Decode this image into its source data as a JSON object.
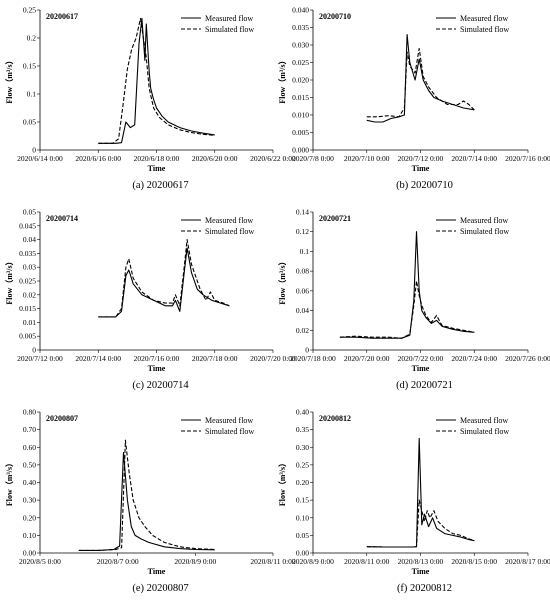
{
  "panels": [
    {
      "caption": "(a) 20200617",
      "chart_data": {
        "type": "line",
        "id_label": "20200617",
        "xlabel": "Time",
        "ylabel": "Flow（m³/s）",
        "x_ticks": [
          "2020/6/14 0:00",
          "2020/6/16 0:00",
          "2020/6/18 0:00",
          "2020/6/20 0:00",
          "2020/6/22 0:00"
        ],
        "y_ticks": [
          "0",
          "0.05",
          "0.1",
          "0.15",
          "0.2",
          "0.25"
        ],
        "xlim": [
          0,
          8
        ],
        "ylim": [
          0,
          0.25
        ],
        "legend_position": "top-right",
        "series": [
          {
            "name": "Measured flow",
            "style": "solid",
            "x": [
              2.0,
              2.6,
              2.8,
              2.95,
              3.1,
              3.25,
              3.4,
              3.5,
              3.6,
              3.65,
              3.75,
              3.8,
              3.9,
              4.0,
              4.2,
              4.4,
              4.8,
              5.2,
              5.6,
              6.0
            ],
            "y": [
              0.012,
              0.012,
              0.013,
              0.05,
              0.04,
              0.045,
              0.19,
              0.235,
              0.16,
              0.225,
              0.14,
              0.11,
              0.09,
              0.075,
              0.06,
              0.05,
              0.04,
              0.034,
              0.03,
              0.027
            ]
          },
          {
            "name": "Simulated flow",
            "style": "dashed",
            "x": [
              2.0,
              2.5,
              2.7,
              2.85,
              3.0,
              3.15,
              3.3,
              3.45,
              3.55,
              3.65,
              3.75,
              3.9,
              4.1,
              4.4,
              4.8,
              5.2,
              5.6,
              6.0
            ],
            "y": [
              0.012,
              0.012,
              0.02,
              0.08,
              0.145,
              0.18,
              0.2,
              0.235,
              0.2,
              0.165,
              0.11,
              0.075,
              0.058,
              0.045,
              0.036,
              0.031,
              0.028,
              0.026
            ]
          }
        ]
      }
    },
    {
      "caption": "(b) 20200710",
      "chart_data": {
        "type": "line",
        "id_label": "20200710",
        "xlabel": "Time",
        "ylabel": "Flow（m³/s）",
        "x_ticks": [
          "2020/7/8 0:00",
          "2020/7/10 0:00",
          "2020/7/12 0:00",
          "2020/7/14 0:00",
          "2020/7/16 0:00"
        ],
        "y_ticks": [
          "0.000",
          "0.005",
          "0.010",
          "0.015",
          "0.020",
          "0.025",
          "0.030",
          "0.035",
          "0.040"
        ],
        "xlim": [
          0,
          8
        ],
        "ylim": [
          0,
          0.04
        ],
        "legend_position": "top-right",
        "series": [
          {
            "name": "Measured flow",
            "style": "solid",
            "x": [
              2.0,
              2.3,
              2.6,
              2.9,
              3.2,
              3.4,
              3.5,
              3.6,
              3.8,
              3.95,
              4.1,
              4.3,
              4.5,
              4.8,
              5.2,
              5.6,
              6.0
            ],
            "y": [
              0.0085,
              0.008,
              0.008,
              0.009,
              0.0095,
              0.01,
              0.033,
              0.025,
              0.02,
              0.026,
              0.02,
              0.017,
              0.015,
              0.014,
              0.013,
              0.012,
              0.0115
            ]
          },
          {
            "name": "Simulated flow",
            "style": "dashed",
            "x": [
              2.0,
              2.4,
              2.8,
              3.2,
              3.4,
              3.5,
              3.6,
              3.8,
              3.95,
              4.1,
              4.3,
              4.6,
              5.0,
              5.4,
              5.6,
              5.8,
              6.0
            ],
            "y": [
              0.0095,
              0.0095,
              0.0098,
              0.0095,
              0.012,
              0.028,
              0.024,
              0.022,
              0.029,
              0.021,
              0.018,
              0.015,
              0.013,
              0.013,
              0.014,
              0.013,
              0.0115
            ]
          }
        ]
      }
    },
    {
      "caption": "(c) 20200714",
      "chart_data": {
        "type": "line",
        "id_label": "20200714",
        "xlabel": "Time",
        "ylabel": "Flow（m³/s）",
        "x_ticks": [
          "2020/7/12 0:00",
          "2020/7/14 0:00",
          "2020/7/16 0:00",
          "2020/7/18 0:00",
          "2020/7/20 0:00"
        ],
        "y_ticks": [
          "0",
          "0.005",
          "0.01",
          "0.015",
          "0.02",
          "0.025",
          "0.03",
          "0.035",
          "0.04",
          "0.045",
          "0.05"
        ],
        "xlim": [
          0,
          8
        ],
        "ylim": [
          0,
          0.05
        ],
        "legend_position": "top-right",
        "series": [
          {
            "name": "Measured flow",
            "style": "solid",
            "x": [
              2.0,
              2.6,
              2.8,
              2.95,
              3.05,
              3.2,
              3.5,
              3.9,
              4.3,
              4.55,
              4.65,
              4.8,
              4.95,
              5.05,
              5.2,
              5.4,
              5.6,
              5.9,
              6.2,
              6.5
            ],
            "y": [
              0.012,
              0.012,
              0.014,
              0.027,
              0.029,
              0.024,
              0.02,
              0.018,
              0.016,
              0.016,
              0.018,
              0.014,
              0.028,
              0.037,
              0.028,
              0.022,
              0.02,
              0.018,
              0.017,
              0.016
            ]
          },
          {
            "name": "Simulated flow",
            "style": "dashed",
            "x": [
              2.0,
              2.6,
              2.8,
              2.95,
              3.05,
              3.2,
              3.5,
              3.9,
              4.3,
              4.55,
              4.65,
              4.8,
              4.95,
              5.05,
              5.2,
              5.5,
              5.7,
              5.85,
              6.0,
              6.3,
              6.5
            ],
            "y": [
              0.012,
              0.012,
              0.015,
              0.03,
              0.033,
              0.026,
              0.021,
              0.018,
              0.017,
              0.017,
              0.02,
              0.016,
              0.03,
              0.04,
              0.031,
              0.022,
              0.018,
              0.021,
              0.018,
              0.017,
              0.016
            ]
          }
        ]
      }
    },
    {
      "caption": "(d) 20200721",
      "chart_data": {
        "type": "line",
        "id_label": "20200721",
        "xlabel": "Time",
        "ylabel": "Flow（m³/s）",
        "x_ticks": [
          "2020/7/18 0:00",
          "2020/7/20 0:00",
          "2020/7/22 0:00",
          "2020/7/24 0:00",
          "2020/7/26 0:00"
        ],
        "y_ticks": [
          "0",
          "0.02",
          "0.04",
          "0.06",
          "0.08",
          "0.1",
          "0.12",
          "0.14"
        ],
        "xlim": [
          0,
          8
        ],
        "ylim": [
          0,
          0.14
        ],
        "legend_position": "top-right",
        "series": [
          {
            "name": "Measured flow",
            "style": "solid",
            "x": [
              1.0,
              1.6,
              2.2,
              2.8,
              3.3,
              3.6,
              3.75,
              3.85,
              3.95,
              4.05,
              4.2,
              4.4,
              4.6,
              4.8,
              5.2,
              5.6,
              6.0
            ],
            "y": [
              0.013,
              0.013,
              0.012,
              0.012,
              0.012,
              0.015,
              0.05,
              0.12,
              0.06,
              0.04,
              0.033,
              0.027,
              0.03,
              0.024,
              0.021,
              0.019,
              0.018
            ]
          },
          {
            "name": "Simulated flow",
            "style": "dashed",
            "x": [
              1.0,
              1.6,
              2.2,
              2.8,
              3.3,
              3.6,
              3.75,
              3.85,
              3.95,
              4.05,
              4.2,
              4.4,
              4.6,
              4.8,
              5.2,
              5.6,
              6.0
            ],
            "y": [
              0.013,
              0.014,
              0.013,
              0.013,
              0.012,
              0.016,
              0.045,
              0.07,
              0.055,
              0.045,
              0.035,
              0.028,
              0.035,
              0.025,
              0.022,
              0.02,
              0.018
            ]
          }
        ]
      }
    },
    {
      "caption": "(e) 20200807",
      "chart_data": {
        "type": "line",
        "id_label": "20200807",
        "xlabel": "Time",
        "ylabel": "Flow（m³/s）",
        "x_ticks": [
          "2020/8/5 0:00",
          "2020/8/7 0:00",
          "2020/8/9 0:00",
          "2020/8/11 0:00"
        ],
        "y_ticks": [
          "0.00",
          "0.10",
          "0.20",
          "0.30",
          "0.40",
          "0.50",
          "0.60",
          "0.70",
          "0.80"
        ],
        "xlim": [
          0,
          6
        ],
        "ylim": [
          0,
          0.8
        ],
        "legend_position": "top-right",
        "series": [
          {
            "name": "Measured flow",
            "style": "solid",
            "x": [
              1.0,
              1.5,
              1.9,
              2.05,
              2.15,
              2.25,
              2.35,
              2.45,
              2.6,
              2.8,
              3.2,
              3.6,
              4.0,
              4.5
            ],
            "y": [
              0.015,
              0.015,
              0.02,
              0.04,
              0.57,
              0.3,
              0.15,
              0.1,
              0.08,
              0.06,
              0.035,
              0.025,
              0.02,
              0.018
            ]
          },
          {
            "name": "Simulated flow",
            "style": "dashed",
            "x": [
              1.0,
              1.5,
              1.95,
              2.1,
              2.2,
              2.3,
              2.4,
              2.55,
              2.7,
              2.9,
              3.2,
              3.6,
              4.0,
              4.5
            ],
            "y": [
              0.015,
              0.015,
              0.02,
              0.03,
              0.64,
              0.45,
              0.3,
              0.2,
              0.15,
              0.1,
              0.06,
              0.035,
              0.025,
              0.02
            ]
          }
        ]
      }
    },
    {
      "caption": "(f) 20200812",
      "chart_data": {
        "type": "line",
        "id_label": "20200812",
        "xlabel": "Time",
        "ylabel": "Flow（m³/s）",
        "x_ticks": [
          "2020/8/9 0:00",
          "2020/8/11 0:00",
          "2020/8/13 0:00",
          "2020/8/15 0:00",
          "2020/8/17 0:00"
        ],
        "y_ticks": [
          "0.00",
          "0.05",
          "0.10",
          "0.15",
          "0.20",
          "0.25",
          "0.30",
          "0.35",
          "0.40"
        ],
        "xlim": [
          0,
          8
        ],
        "ylim": [
          0,
          0.4
        ],
        "legend_position": "top-right",
        "series": [
          {
            "name": "Measured flow",
            "style": "solid",
            "x": [
              2.0,
              2.6,
              3.2,
              3.7,
              3.85,
              3.95,
              4.05,
              4.15,
              4.3,
              4.45,
              4.6,
              4.9,
              5.2,
              5.5,
              5.8,
              6.0
            ],
            "y": [
              0.018,
              0.017,
              0.017,
              0.017,
              0.018,
              0.325,
              0.08,
              0.11,
              0.075,
              0.1,
              0.07,
              0.055,
              0.05,
              0.045,
              0.038,
              0.035
            ]
          },
          {
            "name": "Simulated flow",
            "style": "dashed",
            "x": [
              2.0,
              2.6,
              3.2,
              3.7,
              3.85,
              3.95,
              4.05,
              4.15,
              4.25,
              4.35,
              4.5,
              4.65,
              4.9,
              5.2,
              5.5,
              5.8,
              6.0
            ],
            "y": [
              0.018,
              0.017,
              0.017,
              0.017,
              0.018,
              0.15,
              0.12,
              0.09,
              0.12,
              0.1,
              0.12,
              0.09,
              0.07,
              0.055,
              0.05,
              0.04,
              0.035
            ]
          }
        ]
      }
    }
  ]
}
